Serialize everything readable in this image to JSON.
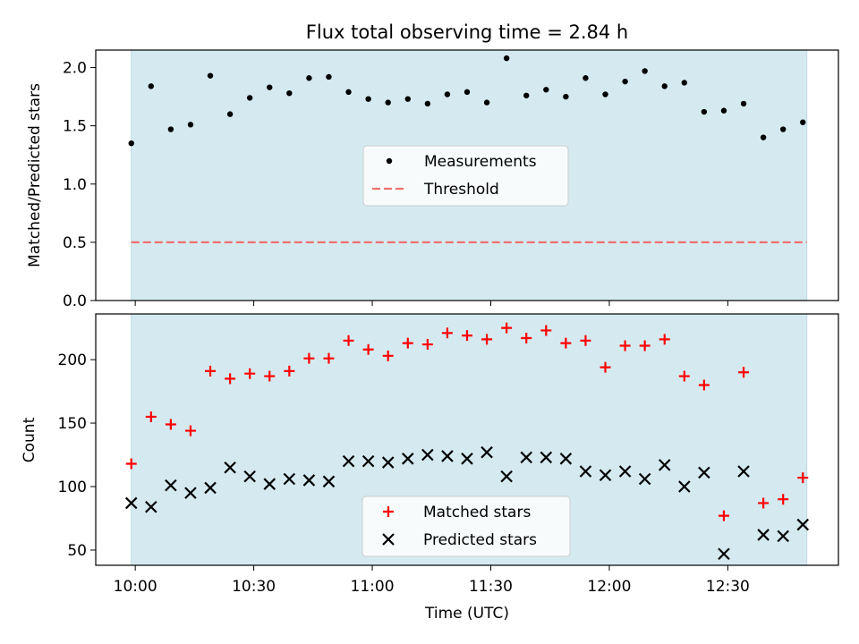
{
  "chart_data": [
    {
      "type": "scatter",
      "title": "Flux total observing time = 2.84 h",
      "xlabel": "",
      "ylabel": "Matched/Predicted stars",
      "ylim": [
        0,
        2.15
      ],
      "yticks": [
        "0.0",
        "0.5",
        "1.0",
        "1.5",
        "2.0"
      ],
      "ytick_values": [
        0,
        0.5,
        1.0,
        1.5,
        2.0
      ],
      "legend_position": "center",
      "shaded_region": {
        "from": "09:59",
        "to": "12:50",
        "color": "#d4eaf0"
      },
      "series": [
        {
          "name": "Measurements",
          "marker": "dot",
          "color": "#000000",
          "x": [
            "09:59",
            "10:04",
            "10:09",
            "10:14",
            "10:19",
            "10:24",
            "10:29",
            "10:34",
            "10:39",
            "10:44",
            "10:49",
            "10:54",
            "10:59",
            "11:04",
            "11:09",
            "11:14",
            "11:19",
            "11:24",
            "11:29",
            "11:34",
            "11:39",
            "11:44",
            "11:49",
            "11:54",
            "11:59",
            "12:04",
            "12:09",
            "12:14",
            "12:19",
            "12:24",
            "12:29",
            "12:34",
            "12:39",
            "12:44",
            "12:49"
          ],
          "y": [
            1.35,
            1.84,
            1.47,
            1.51,
            1.93,
            1.6,
            1.74,
            1.83,
            1.78,
            1.91,
            1.92,
            1.79,
            1.73,
            1.7,
            1.73,
            1.69,
            1.77,
            1.79,
            1.7,
            2.08,
            1.76,
            1.81,
            1.75,
            1.91,
            1.77,
            1.88,
            1.97,
            1.84,
            1.87,
            1.62,
            1.63,
            1.69,
            1.4,
            1.47,
            1.53
          ]
        },
        {
          "name": "Threshold",
          "line": "dashed",
          "color": "#f07070",
          "x": [
            "09:59",
            "12:50"
          ],
          "y": [
            0.5,
            0.5
          ]
        }
      ]
    },
    {
      "type": "scatter",
      "title": "",
      "xlabel": "Time (UTC)",
      "ylabel": "Count",
      "ylim": [
        38,
        236
      ],
      "yticks": [
        "50",
        "100",
        "150",
        "200"
      ],
      "ytick_values": [
        50,
        100,
        150,
        200
      ],
      "xticks": [
        "10:00",
        "10:30",
        "11:00",
        "11:30",
        "12:00",
        "12:30"
      ],
      "xtick_values": [
        "10:00",
        "10:30",
        "11:00",
        "11:30",
        "12:00",
        "12:30"
      ],
      "xlim": [
        "09:50",
        "12:58"
      ],
      "legend_position": "lower center",
      "shaded_region": {
        "from": "09:59",
        "to": "12:50",
        "color": "#d4eaf0"
      },
      "series": [
        {
          "name": "Matched stars",
          "marker": "plus",
          "color": "#ff0000",
          "x": [
            "09:59",
            "10:04",
            "10:09",
            "10:14",
            "10:19",
            "10:24",
            "10:29",
            "10:34",
            "10:39",
            "10:44",
            "10:49",
            "10:54",
            "10:59",
            "11:04",
            "11:09",
            "11:14",
            "11:19",
            "11:24",
            "11:29",
            "11:34",
            "11:39",
            "11:44",
            "11:49",
            "11:54",
            "11:59",
            "12:04",
            "12:09",
            "12:14",
            "12:19",
            "12:24",
            "12:29",
            "12:34",
            "12:39",
            "12:44",
            "12:49"
          ],
          "y": [
            118,
            155,
            149,
            144,
            191,
            185,
            189,
            187,
            191,
            201,
            201,
            215,
            208,
            203,
            213,
            212,
            221,
            219,
            216,
            225,
            217,
            223,
            213,
            215,
            194,
            211,
            211,
            216,
            187,
            180,
            77,
            190,
            87,
            90,
            107
          ]
        },
        {
          "name": "Predicted stars",
          "marker": "x",
          "color": "#000000",
          "x": [
            "09:59",
            "10:04",
            "10:09",
            "10:14",
            "10:19",
            "10:24",
            "10:29",
            "10:34",
            "10:39",
            "10:44",
            "10:49",
            "10:54",
            "10:59",
            "11:04",
            "11:09",
            "11:14",
            "11:19",
            "11:24",
            "11:29",
            "11:34",
            "11:39",
            "11:44",
            "11:49",
            "11:54",
            "11:59",
            "12:04",
            "12:09",
            "12:14",
            "12:19",
            "12:24",
            "12:29",
            "12:34",
            "12:39",
            "12:44",
            "12:49"
          ],
          "y": [
            87,
            84,
            101,
            95,
            99,
            115,
            108,
            102,
            106,
            105,
            104,
            120,
            120,
            119,
            122,
            125,
            124,
            122,
            127,
            108,
            123,
            123,
            122,
            112,
            109,
            112,
            106,
            117,
            100,
            111,
            47,
            112,
            62,
            61,
            70
          ]
        }
      ]
    }
  ]
}
